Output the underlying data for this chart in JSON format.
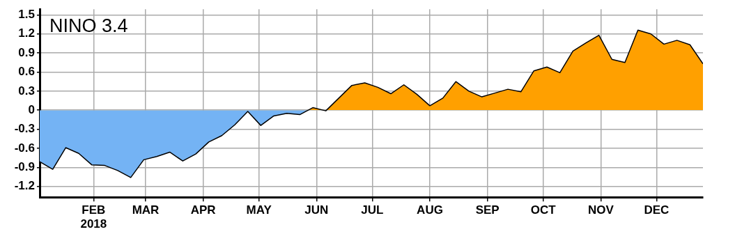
{
  "chart_data": {
    "type": "area",
    "title": "NINO 3.4",
    "x": [
      "2018-01-03",
      "2018-01-10",
      "2018-01-17",
      "2018-01-24",
      "2018-01-31",
      "2018-02-07",
      "2018-02-14",
      "2018-02-21",
      "2018-02-28",
      "2018-03-07",
      "2018-03-14",
      "2018-03-21",
      "2018-03-28",
      "2018-04-04",
      "2018-04-11",
      "2018-04-18",
      "2018-04-25",
      "2018-05-02",
      "2018-05-09",
      "2018-05-16",
      "2018-05-23",
      "2018-05-30",
      "2018-06-06",
      "2018-06-13",
      "2018-06-20",
      "2018-06-27",
      "2018-07-04",
      "2018-07-11",
      "2018-07-18",
      "2018-07-25",
      "2018-08-01",
      "2018-08-08",
      "2018-08-15",
      "2018-08-22",
      "2018-08-29",
      "2018-09-05",
      "2018-09-12",
      "2018-09-19",
      "2018-09-26",
      "2018-10-03",
      "2018-10-10",
      "2018-10-17",
      "2018-10-24",
      "2018-10-31",
      "2018-11-07",
      "2018-11-14",
      "2018-11-21",
      "2018-11-28",
      "2018-12-05",
      "2018-12-12",
      "2018-12-19",
      "2018-12-26"
    ],
    "series": [
      {
        "color": "#000000",
        "values": [
          -0.81,
          -0.93,
          -0.59,
          -0.68,
          -0.86,
          -0.87,
          -0.95,
          -1.06,
          -0.78,
          -0.73,
          -0.66,
          -0.8,
          -0.69,
          -0.5,
          -0.4,
          -0.23,
          -0.02,
          -0.24,
          -0.09,
          -0.05,
          -0.07,
          0.04,
          -0.01,
          0.19,
          0.39,
          0.43,
          0.36,
          0.26,
          0.4,
          0.25,
          0.07,
          0.19,
          0.45,
          0.3,
          0.21,
          0.27,
          0.33,
          0.29,
          0.62,
          0.68,
          0.59,
          0.93,
          1.06,
          1.18,
          0.8,
          0.75,
          1.26,
          1.2,
          1.04,
          1.1,
          1.03,
          0.73
        ],
        "colors": [
          "#74b3f4",
          "#74b3f4",
          "#74b3f4",
          "#74b3f4",
          "#74b3f4",
          "#74b3f4",
          "#74b3f4",
          "#74b3f4",
          "#74b3f4",
          "#74b3f4",
          "#74b3f4",
          "#74b3f4",
          "#74b3f4",
          "#74b3f4",
          "#74b3f4",
          "#74b3f4",
          "#74b3f4",
          "#74b3f4",
          "#74b3f4",
          "#74b3f4",
          "#74b3f4",
          "#ffa000",
          "#74b3f4",
          "#ffa000",
          "#ffa000",
          "#ffa000",
          "#ffa000",
          "#ffa000",
          "#ffa000",
          "#ffa000",
          "#ffa000",
          "#ffa000",
          "#ffa000",
          "#ffa000",
          "#ffa000",
          "#ffa000",
          "#ffa000",
          "#ffa000",
          "#ffa000",
          "#ffa000",
          "#ffa000",
          "#ffa000",
          "#ffa000",
          "#ffa000",
          "#ffa000",
          "#ffa000",
          "#ffa000",
          "#ffa000",
          "#ffa000",
          "#ffa000",
          "#ffa000",
          "#ffa000"
        ]
      }
    ],
    "xlim": [
      "2018-01-03",
      "2018-12-26"
    ],
    "xticks": [
      {
        "value": "2018-02-01",
        "label": "FEB\n2018"
      },
      {
        "value": "2018-03-01",
        "label": "MAR"
      },
      {
        "value": "2018-04-01",
        "label": "APR"
      },
      {
        "value": "2018-05-01",
        "label": "MAY"
      },
      {
        "value": "2018-06-01",
        "label": "JUN"
      },
      {
        "value": "2018-07-01",
        "label": "JUL"
      },
      {
        "value": "2018-08-01",
        "label": "AUG"
      },
      {
        "value": "2018-09-01",
        "label": "SEP"
      },
      {
        "value": "2018-10-01",
        "label": "OCT"
      },
      {
        "value": "2018-11-01",
        "label": "NOV"
      },
      {
        "value": "2018-12-01",
        "label": "DEC"
      }
    ],
    "ylim": [
      -1.37,
      1.59
    ],
    "yticks": [
      {
        "value": 1.5,
        "label": "1.5"
      },
      {
        "value": 1.2,
        "label": "1.2"
      },
      {
        "value": 0.9,
        "label": "0.9"
      },
      {
        "value": 0.6,
        "label": "0.6"
      },
      {
        "value": 0.3,
        "label": "0.3"
      },
      0,
      {
        "value": -0.3,
        "label": "-0.3"
      },
      {
        "value": -0.6,
        "label": "-0.6"
      },
      {
        "value": -0.9,
        "label": "-0.9"
      },
      {
        "value": -1.2,
        "label": "-1.2"
      }
    ],
    "grid": true,
    "legend": false,
    "marker": "none"
  }
}
